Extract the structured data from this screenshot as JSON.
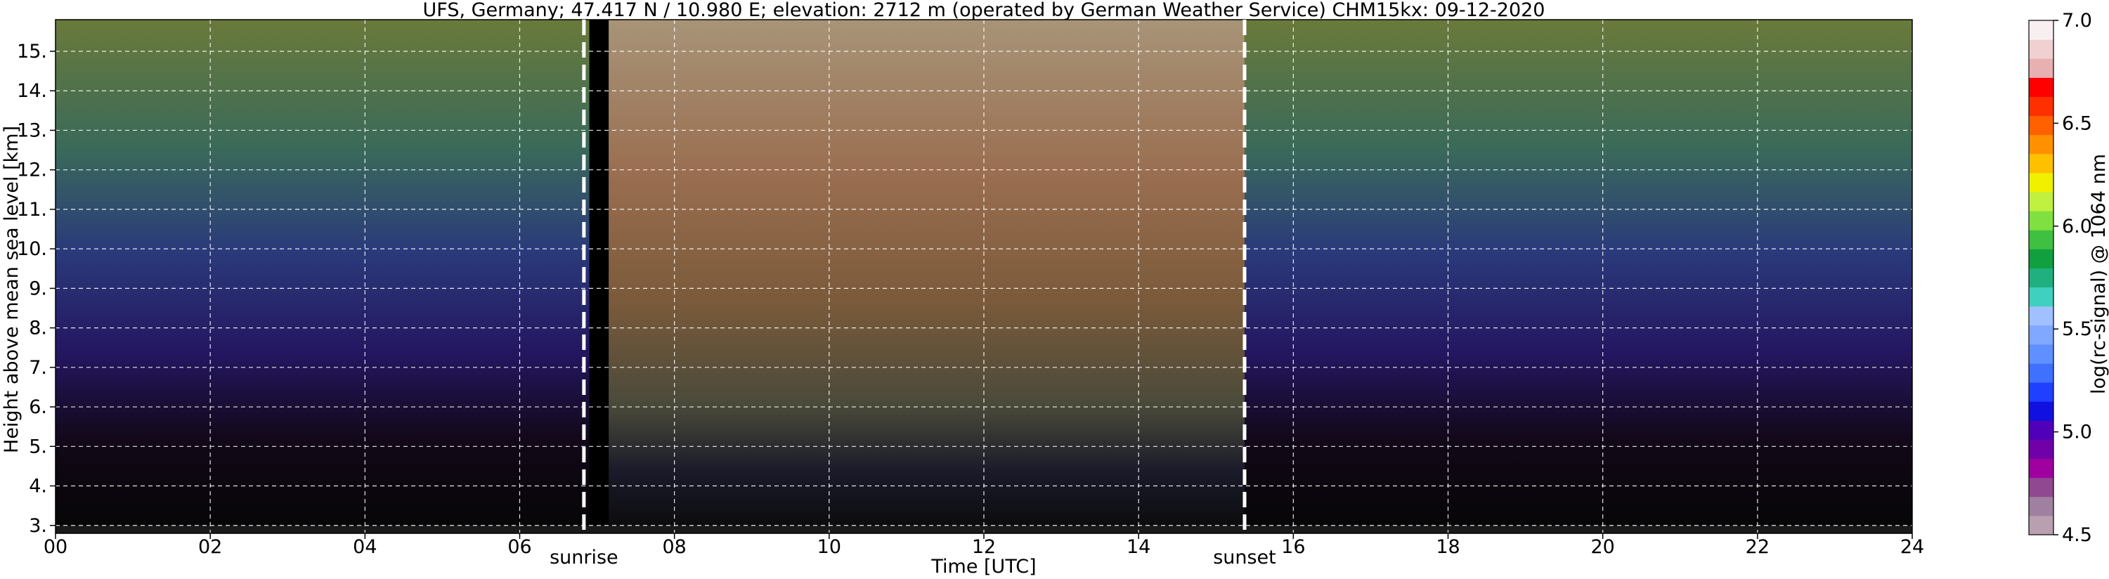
{
  "chart_data": {
    "type": "heatmap",
    "title": "UFS, Germany; 47.417 N / 10.980 E; elevation: 2712 m  (operated by German Weather Service)    CHM15kx: 09-12-2020",
    "xlabel": "Time [UTC]",
    "ylabel": "Height above mean sea level [km]",
    "xlim": [
      0,
      24
    ],
    "ylim": [
      2.8,
      15.8
    ],
    "x_ticks": [
      0,
      2,
      4,
      6,
      8,
      10,
      12,
      14,
      16,
      18,
      20,
      22,
      24
    ],
    "x_tick_labels": [
      "00",
      "02",
      "04",
      "06",
      "08",
      "10",
      "12",
      "14",
      "16",
      "18",
      "20",
      "22",
      "24"
    ],
    "y_ticks": [
      3,
      4,
      5,
      6,
      7,
      8,
      9,
      10,
      11,
      12,
      13,
      14,
      15
    ],
    "y_tick_labels": [
      "3.",
      "4.",
      "5.",
      "6.",
      "7.",
      "8.",
      "9.",
      "10.",
      "11.",
      "12.",
      "13.",
      "14.",
      "15."
    ],
    "grid": true,
    "markers": [
      {
        "label": "sunrise",
        "x": 6.83
      },
      {
        "label": "sunset",
        "x": 15.37
      }
    ],
    "data_gap": [
      6.9,
      7.15
    ],
    "colorbar": {
      "label": "log(rc-signal) @ 1064 nm",
      "range": [
        4.5,
        7.0
      ],
      "ticks": [
        4.5,
        5.0,
        5.5,
        6.0,
        6.5,
        7.0
      ],
      "tick_labels": [
        "4.5",
        "5.0",
        "5.5",
        "6.0",
        "6.5",
        "7.0"
      ],
      "colors": [
        "#b8a0b0",
        "#a080a0",
        "#904890",
        "#a000a0",
        "#7000a8",
        "#5000b8",
        "#1010e0",
        "#2040ff",
        "#4070ff",
        "#6090ff",
        "#80a8ff",
        "#a0c0ff",
        "#40d0c0",
        "#20b080",
        "#10a040",
        "#40c040",
        "#80e040",
        "#c0f040",
        "#f0f000",
        "#ffc000",
        "#ff9000",
        "#ff6000",
        "#ff3000",
        "#ff0000",
        "#e8b0b0",
        "#f0d0d0",
        "#f8f0f0"
      ]
    }
  },
  "colors": {
    "background_noise_low": "#0a0a0a",
    "grid": "#ffffff"
  }
}
